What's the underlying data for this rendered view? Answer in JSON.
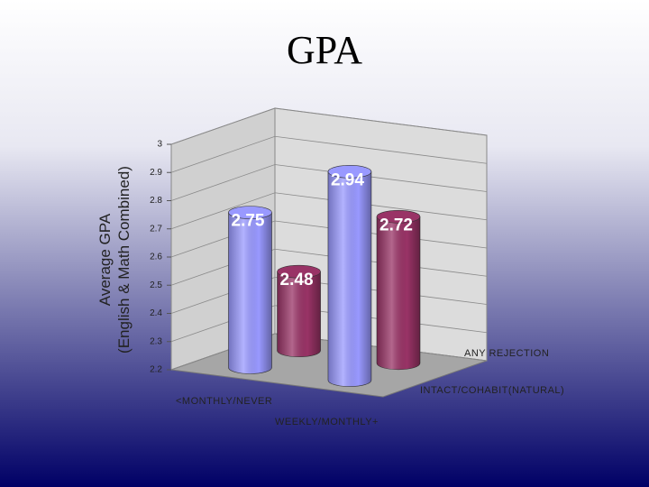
{
  "chart_data": {
    "type": "bar",
    "title": "GPA",
    "ylabel": [
      "Average GPA",
      "(English & Math Combined)"
    ],
    "categories": [
      "<MONTHLY/NEVER",
      "WEEKLY/MONTHLY+"
    ],
    "series": [
      {
        "name": "ANY REJECTION",
        "color": "#993366",
        "values": [
          2.48,
          2.72
        ]
      },
      {
        "name": "INTACT/COHABIT(NATURAL)",
        "color": "#9999ff",
        "values": [
          2.75,
          2.94
        ]
      }
    ],
    "ylim": [
      2.2,
      3
    ],
    "yticks": [
      2.2,
      2.3,
      2.4,
      2.5,
      2.6,
      2.7,
      2.8,
      2.9,
      3
    ],
    "grid": true
  }
}
